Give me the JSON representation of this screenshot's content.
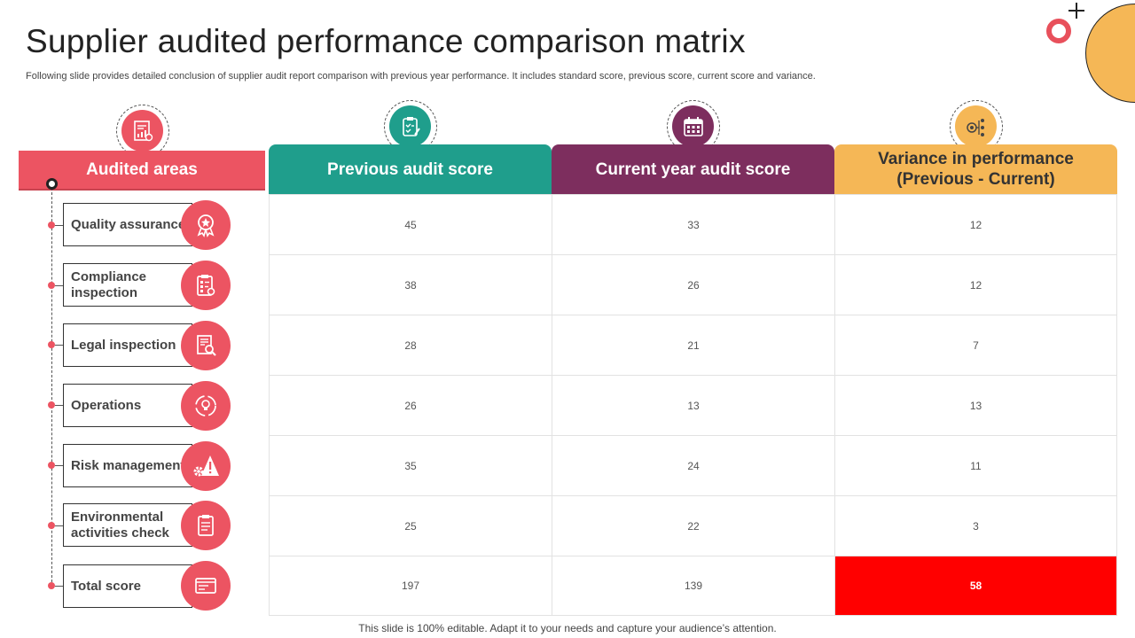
{
  "title": "Supplier audited performance comparison matrix",
  "subtitle": "Following slide provides detailed conclusion of supplier audit report comparison with previous year performance. It includes standard score, previous score, current score and variance.",
  "footer": "This slide is 100% editable. Adapt it to your needs and capture your audience’s attention.",
  "colors": {
    "accent_red": "#EC5462",
    "teal": "#1F9E8C",
    "plum": "#7D2E5E",
    "gold": "#F5B756",
    "highlight": "#FF0000"
  },
  "areas_header": {
    "label": "Audited areas",
    "icon": "report-chart-icon"
  },
  "columns": [
    {
      "label": "Previous audit score",
      "icon": "clipboard-check-icon",
      "color": "#1F9E8C"
    },
    {
      "label": "Current year audit score",
      "icon": "calendar-icon",
      "color": "#7D2E5E"
    },
    {
      "label": "Variance in performance (Previous - Current)",
      "icon": "target-flow-icon",
      "color": "#F5B756"
    }
  ],
  "rows": [
    {
      "area": "Quality assurance",
      "icon": "award-badge-icon",
      "previous": "45",
      "current": "33",
      "variance": "12"
    },
    {
      "area": "Compliance inspection",
      "icon": "checklist-gear-icon",
      "previous": "38",
      "current": "26",
      "variance": "12"
    },
    {
      "area": "Legal inspection",
      "icon": "document-search-icon",
      "previous": "28",
      "current": "21",
      "variance": "7"
    },
    {
      "area": "Operations",
      "icon": "cycle-bulb-icon",
      "previous": "26",
      "current": "13",
      "variance": "13"
    },
    {
      "area": "Risk management",
      "icon": "gear-warning-icon",
      "previous": "35",
      "current": "24",
      "variance": "11"
    },
    {
      "area": "Environmental activities check",
      "icon": "clipboard-list-icon",
      "previous": "25",
      "current": "22",
      "variance": "3"
    },
    {
      "area": "Total score",
      "icon": "browser-window-icon",
      "previous": "197",
      "current": "139",
      "variance": "58",
      "highlight": true
    }
  ]
}
